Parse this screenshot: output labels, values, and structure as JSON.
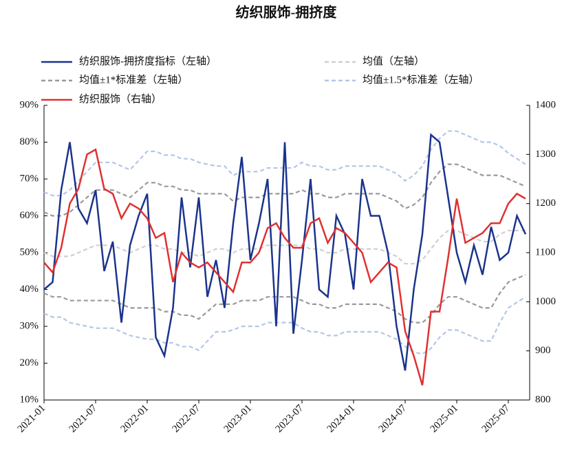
{
  "chart_data": {
    "type": "line",
    "title": "纺织服饰-拥挤度",
    "x": [
      "2021-01",
      "2021-02",
      "2021-03",
      "2021-04",
      "2021-05",
      "2021-06",
      "2021-07",
      "2021-08",
      "2021-09",
      "2021-10",
      "2021-11",
      "2021-12",
      "2022-01",
      "2022-02",
      "2022-03",
      "2022-04",
      "2022-05",
      "2022-06",
      "2022-07",
      "2022-08",
      "2022-09",
      "2022-10",
      "2022-11",
      "2022-12",
      "2023-01",
      "2023-02",
      "2023-03",
      "2023-04",
      "2023-05",
      "2023-06",
      "2023-07",
      "2023-08",
      "2023-09",
      "2023-10",
      "2023-11",
      "2023-12",
      "2024-01",
      "2024-02",
      "2024-03",
      "2024-04",
      "2024-05",
      "2024-06",
      "2024-07",
      "2024-08",
      "2024-09",
      "2024-10",
      "2024-11",
      "2024-12",
      "2025-01",
      "2025-02",
      "2025-03",
      "2025-04",
      "2025-05",
      "2025-06",
      "2025-07",
      "2025-08",
      "2025-09"
    ],
    "xticks": [
      "2021-01",
      "2021-07",
      "2022-01",
      "2022-07",
      "2023-01",
      "2023-07",
      "2024-01",
      "2024-07",
      "2025-01",
      "2025-07"
    ],
    "ylim": [
      10,
      90
    ],
    "yticks": [
      {
        "value": 10,
        "label": "10%"
      },
      {
        "value": 20,
        "label": "20%"
      },
      {
        "value": 30,
        "label": "30%"
      },
      {
        "value": 40,
        "label": "40%"
      },
      {
        "value": 50,
        "label": "50%"
      },
      {
        "value": 60,
        "label": "60%"
      },
      {
        "value": 70,
        "label": "70%"
      },
      {
        "value": 80,
        "label": "80%"
      },
      {
        "value": 90,
        "label": "90%"
      }
    ],
    "y2lim": [
      800,
      1400
    ],
    "y2ticks": [
      800,
      900,
      1000,
      1100,
      1200,
      1300,
      1400
    ],
    "series": [
      {
        "name": "纺织服饰-拥挤度指标（左轴）",
        "color": "#1a338c",
        "style": "solid",
        "values": [
          40,
          42,
          67,
          80,
          62,
          58,
          67,
          45,
          53,
          31,
          52,
          60,
          66,
          27,
          22,
          35,
          65,
          46,
          65,
          38,
          48,
          35,
          58,
          76,
          48,
          58,
          70,
          30,
          80,
          28,
          48,
          70,
          40,
          38,
          60,
          55,
          40,
          70,
          60,
          60,
          50,
          30,
          18,
          40,
          55,
          82,
          80,
          65,
          50,
          42,
          52,
          44,
          57,
          48,
          50,
          60,
          55
        ]
      },
      {
        "name": "均值（左轴）",
        "color": "#cfcfcf",
        "style": "dash",
        "values": [
          50,
          49,
          49,
          49,
          50,
          51,
          52,
          52,
          52,
          51,
          50,
          51,
          52,
          52,
          51,
          51,
          50,
          50,
          49,
          50,
          51,
          51,
          50,
          51,
          51,
          51,
          52,
          52,
          52,
          52,
          52,
          51,
          51,
          50,
          50,
          51,
          51,
          51,
          51,
          51,
          50,
          49,
          47,
          47,
          48,
          51,
          54,
          56,
          56,
          55,
          54,
          53,
          53,
          55,
          56,
          56,
          56
        ]
      },
      {
        "name": "均值±1*标准差（左轴）",
        "color": "#999999",
        "style": "dash",
        "upper": [
          61,
          60,
          60,
          61,
          63,
          65,
          67,
          67,
          67,
          66,
          65,
          67,
          69,
          69,
          68,
          68,
          67,
          67,
          66,
          66,
          66,
          66,
          64,
          65,
          65,
          65,
          66,
          66,
          66,
          66,
          67,
          66,
          66,
          65,
          65,
          66,
          66,
          66,
          66,
          66,
          65,
          64,
          62,
          63,
          65,
          69,
          72,
          74,
          74,
          73,
          72,
          71,
          71,
          71,
          70,
          69,
          68
        ],
        "lower": [
          39,
          38,
          38,
          37,
          37,
          37,
          37,
          37,
          37,
          36,
          35,
          35,
          35,
          35,
          34,
          34,
          33,
          33,
          32,
          34,
          36,
          36,
          36,
          37,
          37,
          37,
          38,
          38,
          38,
          38,
          37,
          36,
          36,
          35,
          35,
          36,
          36,
          36,
          36,
          36,
          35,
          34,
          32,
          31,
          31,
          33,
          36,
          38,
          38,
          37,
          36,
          35,
          35,
          39,
          42,
          43,
          44
        ]
      },
      {
        "name": "均值±1.5*标准差（左轴）",
        "color": "#b4c6e7",
        "style": "dash",
        "upper": [
          66.5,
          65.5,
          65.5,
          67,
          69.5,
          72,
          74.5,
          74.5,
          74.5,
          73.5,
          72.5,
          75,
          77.5,
          77.5,
          76.5,
          76.5,
          75.5,
          75.5,
          74.5,
          74,
          73.5,
          73.5,
          71,
          72,
          72,
          72,
          73,
          73,
          73,
          73,
          74.5,
          73.5,
          73.5,
          72.5,
          72.5,
          73.5,
          73.5,
          73.5,
          73.5,
          73.5,
          72.5,
          71.5,
          69.5,
          71,
          73.5,
          78,
          81,
          83,
          83,
          82,
          81,
          80,
          80,
          79,
          77,
          75.5,
          74
        ],
        "lower": [
          33.5,
          32.5,
          32.5,
          31,
          30.5,
          30,
          29.5,
          29.5,
          29.5,
          28.5,
          27.5,
          27,
          26.5,
          26.5,
          25.5,
          25.5,
          24.5,
          24.5,
          23.5,
          26,
          28.5,
          28.5,
          29,
          30,
          30,
          30,
          31,
          31,
          31,
          31,
          29.5,
          28.5,
          28.5,
          27.5,
          27.5,
          28.5,
          28.5,
          28.5,
          28.5,
          28.5,
          27.5,
          26.5,
          24.5,
          23,
          22.5,
          24,
          27,
          29,
          29,
          28,
          27,
          26,
          26,
          31,
          35,
          36.5,
          38
        ]
      },
      {
        "name": "纺织服饰（右轴）",
        "color": "#e03030",
        "style": "solid",
        "axis": "y2",
        "values": [
          1080,
          1060,
          1110,
          1200,
          1230,
          1300,
          1310,
          1230,
          1220,
          1170,
          1200,
          1190,
          1170,
          1130,
          1140,
          1040,
          1100,
          1080,
          1070,
          1080,
          1060,
          1040,
          1020,
          1080,
          1080,
          1100,
          1150,
          1160,
          1130,
          1110,
          1110,
          1160,
          1170,
          1120,
          1150,
          1140,
          1120,
          1100,
          1040,
          1060,
          1080,
          1070,
          940,
          890,
          830,
          980,
          980,
          1090,
          1210,
          1120,
          1130,
          1140,
          1160,
          1160,
          1200,
          1220,
          1210
        ]
      }
    ]
  }
}
